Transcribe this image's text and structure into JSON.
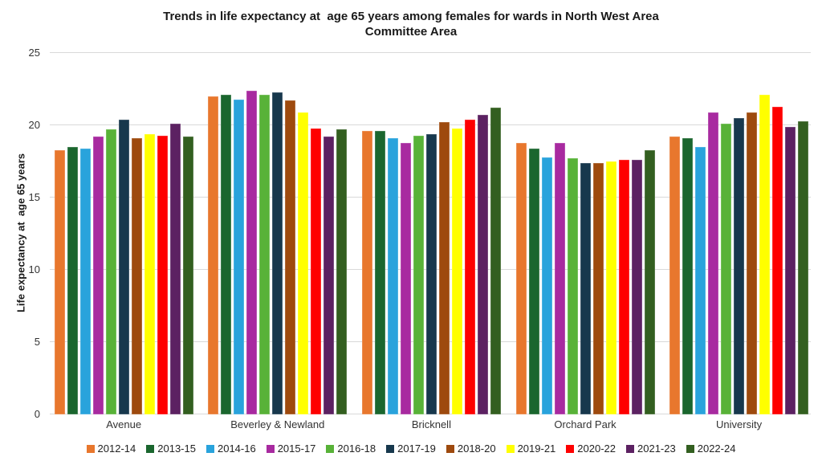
{
  "title": {
    "line1": "Trends in life expectancy at  age 65 years among females for wards in North West Area",
    "line2": "Committee Area"
  },
  "chart_data": {
    "type": "bar",
    "title": "Trends in life expectancy at  age 65 years among females for wards in North West Area Committee Area",
    "xlabel": "",
    "ylabel": "Life expectancy at  age 65 years",
    "ylim": [
      0,
      25
    ],
    "yticks": [
      0,
      5,
      10,
      15,
      20,
      25
    ],
    "grid": true,
    "legend_position": "bottom",
    "background_color": "#FFFFFF",
    "gridline_color": "#D9D9D9",
    "categories": [
      "Avenue",
      "Beverley & Newland",
      "Bricknell",
      "Orchard Park",
      "University"
    ],
    "series": [
      {
        "name": "2012-14",
        "color": "#E8772D",
        "values": [
          18.3,
          22.0,
          19.6,
          18.8,
          19.2
        ]
      },
      {
        "name": "2013-15",
        "color": "#1A662E",
        "values": [
          18.5,
          22.1,
          19.6,
          18.4,
          19.1
        ]
      },
      {
        "name": "2014-16",
        "color": "#29A3DC",
        "values": [
          18.4,
          21.8,
          19.1,
          17.8,
          18.5
        ]
      },
      {
        "name": "2015-17",
        "color": "#A82AA0",
        "values": [
          19.2,
          22.4,
          18.8,
          18.8,
          20.9
        ]
      },
      {
        "name": "2016-18",
        "color": "#58B238",
        "values": [
          19.7,
          22.1,
          19.3,
          17.7,
          20.1
        ]
      },
      {
        "name": "2017-19",
        "color": "#17384D",
        "values": [
          20.4,
          22.3,
          19.4,
          17.4,
          20.5
        ]
      },
      {
        "name": "2018-20",
        "color": "#9E4A0E",
        "values": [
          19.1,
          21.7,
          20.2,
          17.4,
          20.9
        ]
      },
      {
        "name": "2019-21",
        "color": "#FFFF00",
        "values": [
          19.4,
          20.9,
          19.8,
          17.5,
          22.1
        ]
      },
      {
        "name": "2020-22",
        "color": "#FE0000",
        "values": [
          19.3,
          19.8,
          20.4,
          17.6,
          21.3
        ]
      },
      {
        "name": "2021-23",
        "color": "#5C2162",
        "values": [
          20.1,
          19.2,
          20.7,
          17.6,
          19.9
        ]
      },
      {
        "name": "2022-24",
        "color": "#335F20",
        "values": [
          19.2,
          19.7,
          21.2,
          18.3,
          20.3
        ]
      }
    ]
  }
}
